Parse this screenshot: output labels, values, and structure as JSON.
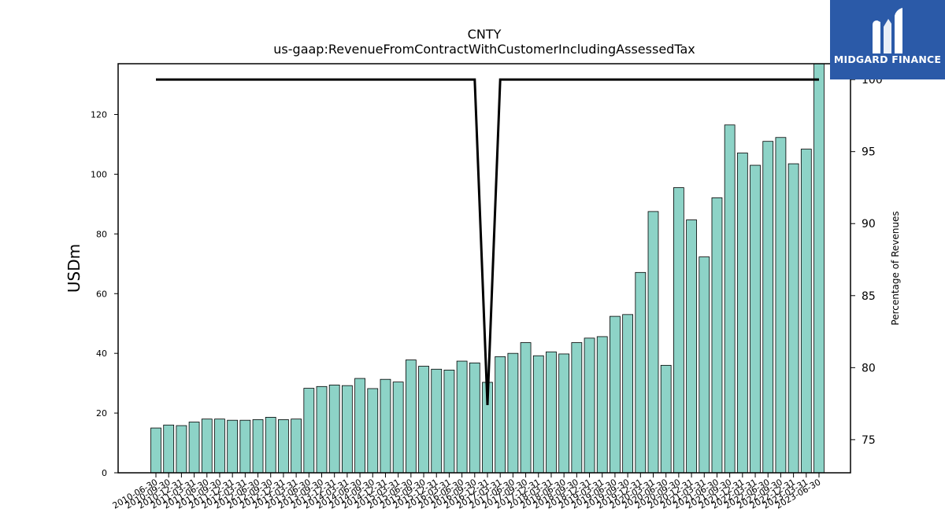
{
  "logo": {
    "text": "MIDGARD FINANCE",
    "icon": "midgard-logo-icon",
    "bg_color": "#2b5aa8"
  },
  "chart_data": {
    "type": "bar",
    "title": "CNTY",
    "subtitle": "us-gaap:RevenueFromContractWithCustomerIncludingAssessedTax",
    "ylabel": "USDm",
    "y2label": "Percentage of Revenues",
    "ylim": [
      0,
      137
    ],
    "y2lim": [
      72.7,
      101.1
    ],
    "yticks": [
      0,
      20,
      40,
      60,
      80,
      100,
      120
    ],
    "y2ticks": [
      75,
      80,
      85,
      90,
      95,
      100
    ],
    "bar_color": "#8dd3c7",
    "line_color": "#000000",
    "categories": [
      "2010-06-30",
      "2010-09-30",
      "2010-12-31",
      "2011-03-31",
      "2011-06-30",
      "2011-09-30",
      "2011-12-31",
      "2012-03-31",
      "2012-06-30",
      "2012-09-30",
      "2012-12-31",
      "2013-03-31",
      "2013-06-30",
      "2013-09-30",
      "2013-12-31",
      "2014-03-31",
      "2014-06-30",
      "2014-09-30",
      "2014-12-31",
      "2015-03-31",
      "2015-06-30",
      "2015-09-30",
      "2015-12-31",
      "2016-03-31",
      "2016-06-30",
      "2016-09-30",
      "2016-12-31",
      "2017-03-31",
      "2017-06-30",
      "2017-09-30",
      "2017-12-31",
      "2018-03-31",
      "2018-06-30",
      "2018-09-30",
      "2018-12-31",
      "2019-03-31",
      "2019-06-30",
      "2019-09-30",
      "2019-12-31",
      "2020-03-31",
      "2020-06-30",
      "2020-09-30",
      "2020-12-31",
      "2021-03-31",
      "2021-06-30",
      "2021-09-30",
      "2021-12-31",
      "2022-03-31",
      "2022-06-30",
      "2022-09-30",
      "2022-12-31",
      "2023-03-31",
      "2023-06-30"
    ],
    "series": [
      {
        "axis": "left",
        "values": [
          15.0,
          16.0,
          15.8,
          17.0,
          18.0,
          18.0,
          17.6,
          17.6,
          17.8,
          18.6,
          17.8,
          18.0,
          28.3,
          28.9,
          29.4,
          29.2,
          31.6,
          28.2,
          31.3,
          30.4,
          37.8,
          35.7,
          34.7,
          34.4,
          37.4,
          36.8,
          30.3,
          38.9,
          40.0,
          43.6,
          39.2,
          40.5,
          39.8,
          43.6,
          45.1,
          45.6,
          52.4,
          53.0,
          67.1,
          87.5,
          36.0,
          95.5,
          84.7,
          72.3,
          92.1,
          116.5,
          107.1,
          103.0,
          111.0,
          112.3,
          103.5,
          108.4,
          137.0
        ]
      },
      {
        "axis": "right",
        "type": "line",
        "values": [
          100,
          100,
          100,
          100,
          100,
          100,
          100,
          100,
          100,
          100,
          100,
          100,
          100,
          100,
          100,
          100,
          100,
          100,
          100,
          100,
          100,
          100,
          100,
          100,
          100,
          100,
          77.4,
          100,
          100,
          100,
          100,
          100,
          100,
          100,
          100,
          100,
          100,
          100,
          100,
          100,
          100,
          100,
          100,
          100,
          100,
          100,
          100,
          100,
          100,
          100,
          100,
          100,
          100
        ]
      }
    ],
    "legend": "none",
    "grid": false
  }
}
